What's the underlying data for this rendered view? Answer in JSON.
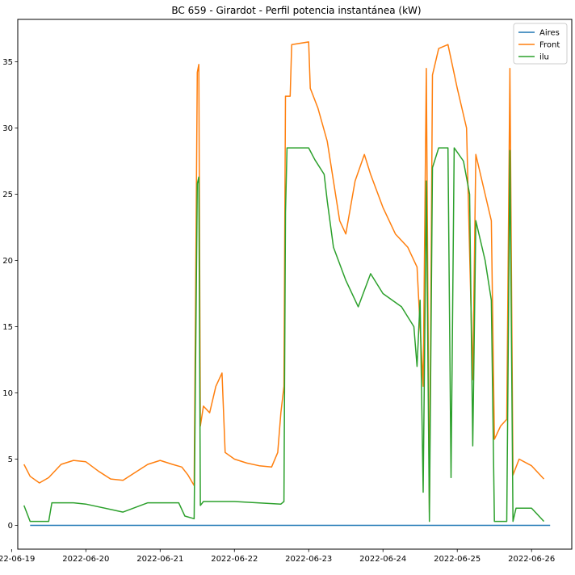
{
  "chart_data": {
    "type": "line",
    "title": "BC 659 - Girardot - Perfil potencia instantánea (kW)",
    "xlabel": "",
    "ylabel": "",
    "x_type": "date",
    "xlim": [
      "2022-06-19 02:00",
      "2022-06-26 13:00"
    ],
    "ylim": [
      -1.8,
      38.2
    ],
    "x_ticks": [
      "2022-06-19",
      "2022-06-20",
      "2022-06-21",
      "2022-06-22",
      "2022-06-23",
      "2022-06-24",
      "2022-06-25",
      "2022-06-26"
    ],
    "y_ticks": [
      0,
      5,
      10,
      15,
      20,
      25,
      30,
      35
    ],
    "legend_position": "top-right",
    "grid": false,
    "series": [
      {
        "name": "Aires",
        "color": "#1f77b4",
        "points": [
          [
            "2022-06-19 06:00",
            0
          ],
          [
            "2022-06-26 06:00",
            0
          ]
        ]
      },
      {
        "name": "Front",
        "color": "#ff7f0e",
        "points": [
          [
            "2022-06-19 04:00",
            4.6
          ],
          [
            "2022-06-19 06:00",
            3.7
          ],
          [
            "2022-06-19 09:00",
            3.2
          ],
          [
            "2022-06-19 12:00",
            3.6
          ],
          [
            "2022-06-19 16:00",
            4.6
          ],
          [
            "2022-06-19 20:00",
            4.9
          ],
          [
            "2022-06-20 00:00",
            4.8
          ],
          [
            "2022-06-20 04:00",
            4.1
          ],
          [
            "2022-06-20 08:00",
            3.5
          ],
          [
            "2022-06-20 12:00",
            3.4
          ],
          [
            "2022-06-20 16:00",
            4.0
          ],
          [
            "2022-06-20 20:00",
            4.6
          ],
          [
            "2022-06-21 00:00",
            4.9
          ],
          [
            "2022-06-21 04:00",
            4.6
          ],
          [
            "2022-06-21 07:00",
            4.4
          ],
          [
            "2022-06-21 09:00",
            3.8
          ],
          [
            "2022-06-21 11:00",
            3.0
          ],
          [
            "2022-06-21 12:00",
            34.2
          ],
          [
            "2022-06-21 12:30",
            34.8
          ],
          [
            "2022-06-21 13:00",
            7.5
          ],
          [
            "2022-06-21 14:00",
            9.0
          ],
          [
            "2022-06-21 16:00",
            8.5
          ],
          [
            "2022-06-21 18:00",
            10.5
          ],
          [
            "2022-06-21 20:00",
            11.5
          ],
          [
            "2022-06-21 21:00",
            5.5
          ],
          [
            "2022-06-22 00:00",
            5.0
          ],
          [
            "2022-06-22 04:00",
            4.7
          ],
          [
            "2022-06-22 08:00",
            4.5
          ],
          [
            "2022-06-22 12:00",
            4.4
          ],
          [
            "2022-06-22 14:00",
            5.5
          ],
          [
            "2022-06-22 15:00",
            8.5
          ],
          [
            "2022-06-22 16:00",
            10.5
          ],
          [
            "2022-06-22 16:30",
            32.4
          ],
          [
            "2022-06-22 18:00",
            32.4
          ],
          [
            "2022-06-22 18:30",
            36.3
          ],
          [
            "2022-06-23 00:00",
            36.5
          ],
          [
            "2022-06-23 00:30",
            33.0
          ],
          [
            "2022-06-23 03:00",
            31.5
          ],
          [
            "2022-06-23 06:00",
            29.0
          ],
          [
            "2022-06-23 08:00",
            26.0
          ],
          [
            "2022-06-23 10:00",
            23.0
          ],
          [
            "2022-06-23 12:00",
            22.0
          ],
          [
            "2022-06-23 15:00",
            26.0
          ],
          [
            "2022-06-23 18:00",
            28.0
          ],
          [
            "2022-06-23 20:00",
            26.5
          ],
          [
            "2022-06-24 00:00",
            24.0
          ],
          [
            "2022-06-24 04:00",
            22.0
          ],
          [
            "2022-06-24 08:00",
            21.0
          ],
          [
            "2022-06-24 11:00",
            19.5
          ],
          [
            "2022-06-24 13:00",
            10.5
          ],
          [
            "2022-06-24 14:00",
            34.5
          ],
          [
            "2022-06-24 15:00",
            1.0
          ],
          [
            "2022-06-24 16:00",
            34.0
          ],
          [
            "2022-06-24 18:00",
            36.0
          ],
          [
            "2022-06-24 21:00",
            36.3
          ],
          [
            "2022-06-25 00:00",
            33.0
          ],
          [
            "2022-06-25 03:00",
            30.0
          ],
          [
            "2022-06-25 05:00",
            11.0
          ],
          [
            "2022-06-25 06:00",
            28.0
          ],
          [
            "2022-06-25 09:00",
            25.0
          ],
          [
            "2022-06-25 11:00",
            23.0
          ],
          [
            "2022-06-25 12:00",
            6.5
          ],
          [
            "2022-06-25 14:00",
            7.5
          ],
          [
            "2022-06-25 16:00",
            8.0
          ],
          [
            "2022-06-25 17:00",
            34.5
          ],
          [
            "2022-06-25 18:00",
            3.8
          ],
          [
            "2022-06-25 20:00",
            5.0
          ],
          [
            "2022-06-26 00:00",
            4.5
          ],
          [
            "2022-06-26 04:00",
            3.5
          ]
        ]
      },
      {
        "name": "ilu",
        "color": "#2ca02c",
        "points": [
          [
            "2022-06-19 04:00",
            1.5
          ],
          [
            "2022-06-19 06:00",
            0.3
          ],
          [
            "2022-06-19 12:00",
            0.3
          ],
          [
            "2022-06-19 13:00",
            1.7
          ],
          [
            "2022-06-19 20:00",
            1.7
          ],
          [
            "2022-06-20 00:00",
            1.6
          ],
          [
            "2022-06-20 12:00",
            1.0
          ],
          [
            "2022-06-20 20:00",
            1.7
          ],
          [
            "2022-06-21 06:00",
            1.7
          ],
          [
            "2022-06-21 08:00",
            0.7
          ],
          [
            "2022-06-21 11:00",
            0.5
          ],
          [
            "2022-06-21 12:00",
            25.8
          ],
          [
            "2022-06-21 12:30",
            26.3
          ],
          [
            "2022-06-21 13:00",
            1.5
          ],
          [
            "2022-06-21 14:00",
            1.8
          ],
          [
            "2022-06-22 00:00",
            1.8
          ],
          [
            "2022-06-22 15:00",
            1.6
          ],
          [
            "2022-06-22 16:00",
            1.8
          ],
          [
            "2022-06-22 16:30",
            23.6
          ],
          [
            "2022-06-22 17:00",
            28.5
          ],
          [
            "2022-06-23 00:00",
            28.5
          ],
          [
            "2022-06-23 02:00",
            27.6
          ],
          [
            "2022-06-23 05:00",
            26.5
          ],
          [
            "2022-06-23 06:00",
            24.5
          ],
          [
            "2022-06-23 08:00",
            21.0
          ],
          [
            "2022-06-23 12:00",
            18.5
          ],
          [
            "2022-06-23 16:00",
            16.5
          ],
          [
            "2022-06-23 20:00",
            19.0
          ],
          [
            "2022-06-24 00:00",
            17.5
          ],
          [
            "2022-06-24 06:00",
            16.5
          ],
          [
            "2022-06-24 10:00",
            15.0
          ],
          [
            "2022-06-24 11:00",
            12.0
          ],
          [
            "2022-06-24 12:00",
            17.0
          ],
          [
            "2022-06-24 13:00",
            2.5
          ],
          [
            "2022-06-24 14:00",
            26.0
          ],
          [
            "2022-06-24 15:00",
            0.3
          ],
          [
            "2022-06-24 16:00",
            27.0
          ],
          [
            "2022-06-24 18:00",
            28.5
          ],
          [
            "2022-06-24 21:00",
            28.5
          ],
          [
            "2022-06-24 22:00",
            3.6
          ],
          [
            "2022-06-24 23:00",
            28.5
          ],
          [
            "2022-06-25 02:00",
            27.5
          ],
          [
            "2022-06-25 04:00",
            25.0
          ],
          [
            "2022-06-25 05:00",
            6.0
          ],
          [
            "2022-06-25 06:00",
            23.0
          ],
          [
            "2022-06-25 09:00",
            20.0
          ],
          [
            "2022-06-25 11:00",
            17.0
          ],
          [
            "2022-06-25 12:00",
            0.3
          ],
          [
            "2022-06-25 16:00",
            0.3
          ],
          [
            "2022-06-25 17:00",
            28.3
          ],
          [
            "2022-06-25 18:00",
            0.3
          ],
          [
            "2022-06-25 19:00",
            1.3
          ],
          [
            "2022-06-26 00:00",
            1.3
          ],
          [
            "2022-06-26 04:00",
            0.3
          ]
        ]
      }
    ]
  }
}
